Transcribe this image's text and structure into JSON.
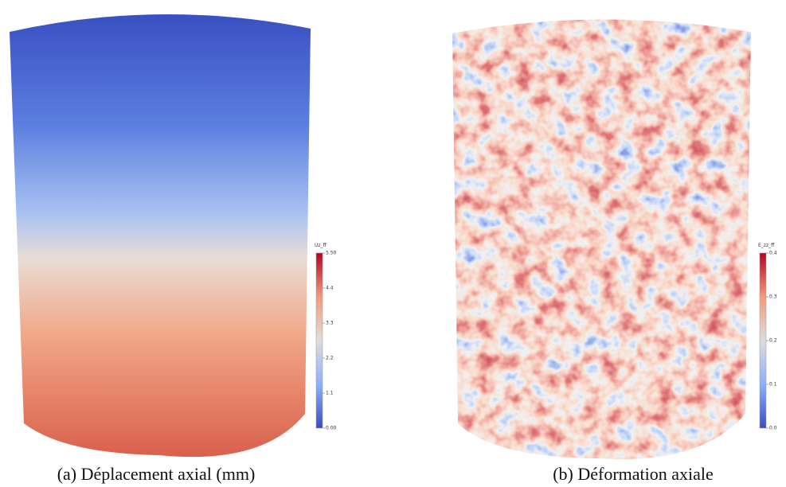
{
  "panels": [
    {
      "caption": "(a) Déplacement axial (mm)",
      "colorbar": {
        "title": "Uz_ff",
        "ticks": [
          "0.00",
          "1.1",
          "2.2",
          "3.3",
          "4.4",
          "5.50"
        ]
      }
    },
    {
      "caption": "(b) Déformation axiale",
      "colorbar": {
        "title": "E_zz_ff",
        "ticks": [
          "0.0",
          "0.1",
          "0.2",
          "0.3",
          "0.4"
        ]
      }
    }
  ]
}
